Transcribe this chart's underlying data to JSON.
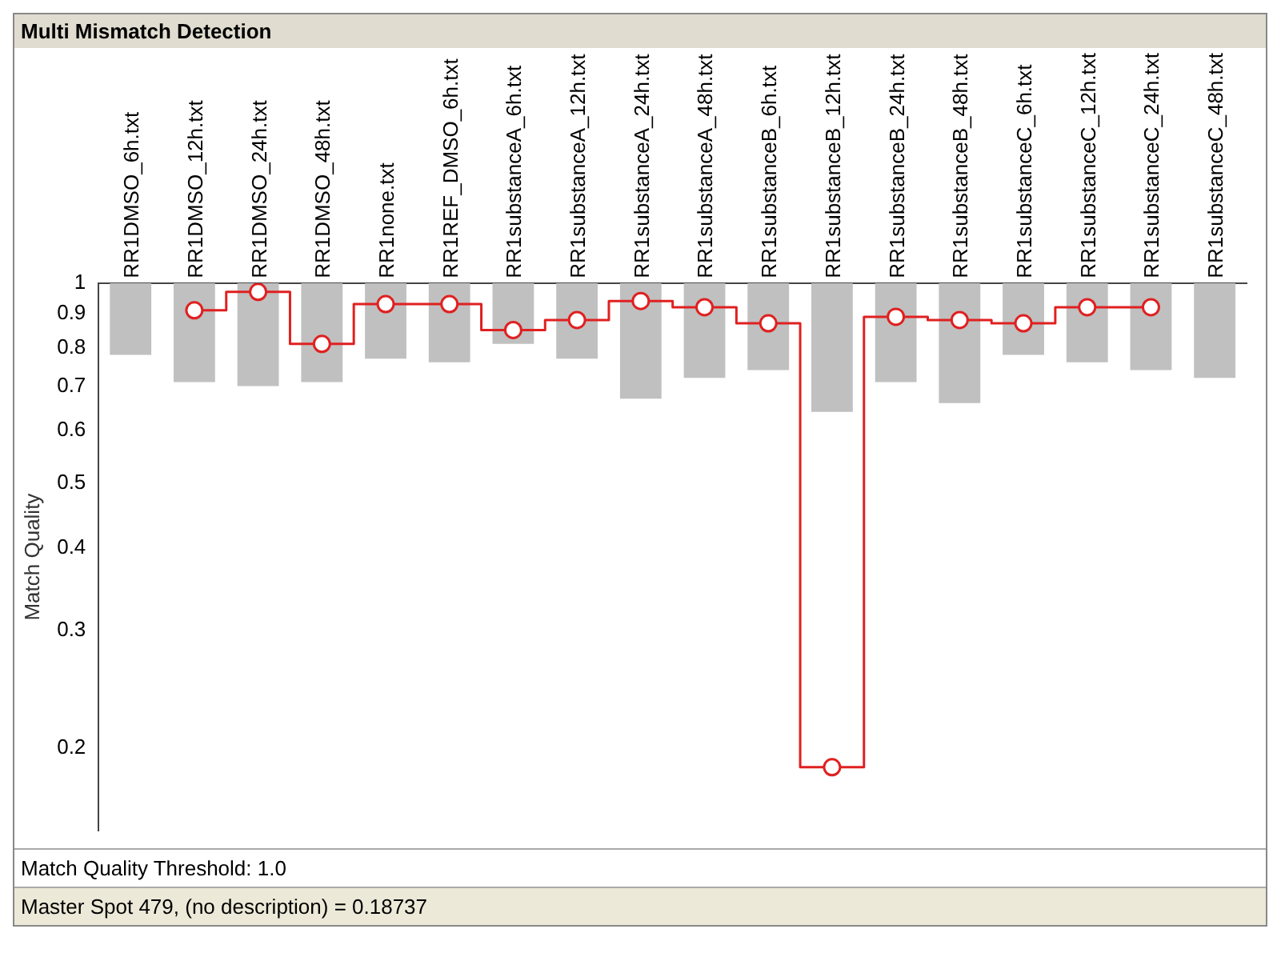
{
  "chart_data": {
    "type": "bar",
    "title": "Multi Mismatch Detection",
    "ylabel": "Match Quality",
    "categories": [
      "RR1DMSO_6h.txt",
      "RR1DMSO_12h.txt",
      "RR1DMSO_24h.txt",
      "RR1DMSO_48h.txt",
      "RR1none.txt",
      "RR1REF_DMSO_6h.txt",
      "RR1substanceA_6h.txt",
      "RR1substanceA_12h.txt",
      "RR1substanceA_24h.txt",
      "RR1substanceA_48h.txt",
      "RR1substanceB_6h.txt",
      "RR1substanceB_12h.txt",
      "RR1substanceB_24h.txt",
      "RR1substanceB_48h.txt",
      "RR1substanceC_6h.txt",
      "RR1substanceC_12h.txt",
      "RR1substanceC_24h.txt",
      "RR1substanceC_48h.txt"
    ],
    "series": [
      {
        "color": "#c0c0c0",
        "base": [
          0.78,
          0.71,
          0.7,
          0.71,
          0.77,
          0.76,
          0.81,
          0.77,
          0.67,
          0.72,
          0.74,
          0.64,
          0.71,
          0.66,
          0.78,
          0.76,
          0.74,
          0.72
        ],
        "values": [
          0.22,
          0.29,
          0.3,
          0.29,
          0.23,
          0.24,
          0.19,
          0.23,
          0.33,
          0.28,
          0.26,
          0.36,
          0.29,
          0.34,
          0.22,
          0.24,
          0.26,
          0.28
        ]
      },
      {
        "type": "step",
        "color": "#e02020",
        "marker": "circle",
        "values": [
          null,
          0.91,
          0.97,
          0.81,
          0.93,
          0.93,
          0.85,
          0.88,
          0.94,
          0.92,
          0.87,
          0.187,
          0.89,
          0.88,
          0.87,
          0.92,
          0.92,
          null
        ]
      }
    ],
    "ylim": [
      0.15,
      1
    ],
    "yticks": [
      1,
      0.9,
      0.8,
      0.7,
      0.6,
      0.5,
      0.4,
      0.3,
      0.2
    ],
    "log": true,
    "grid": false,
    "annotations": [
      "Match Quality Threshold: 1.0",
      "Master Spot 479, (no description) = 0.18737"
    ]
  }
}
